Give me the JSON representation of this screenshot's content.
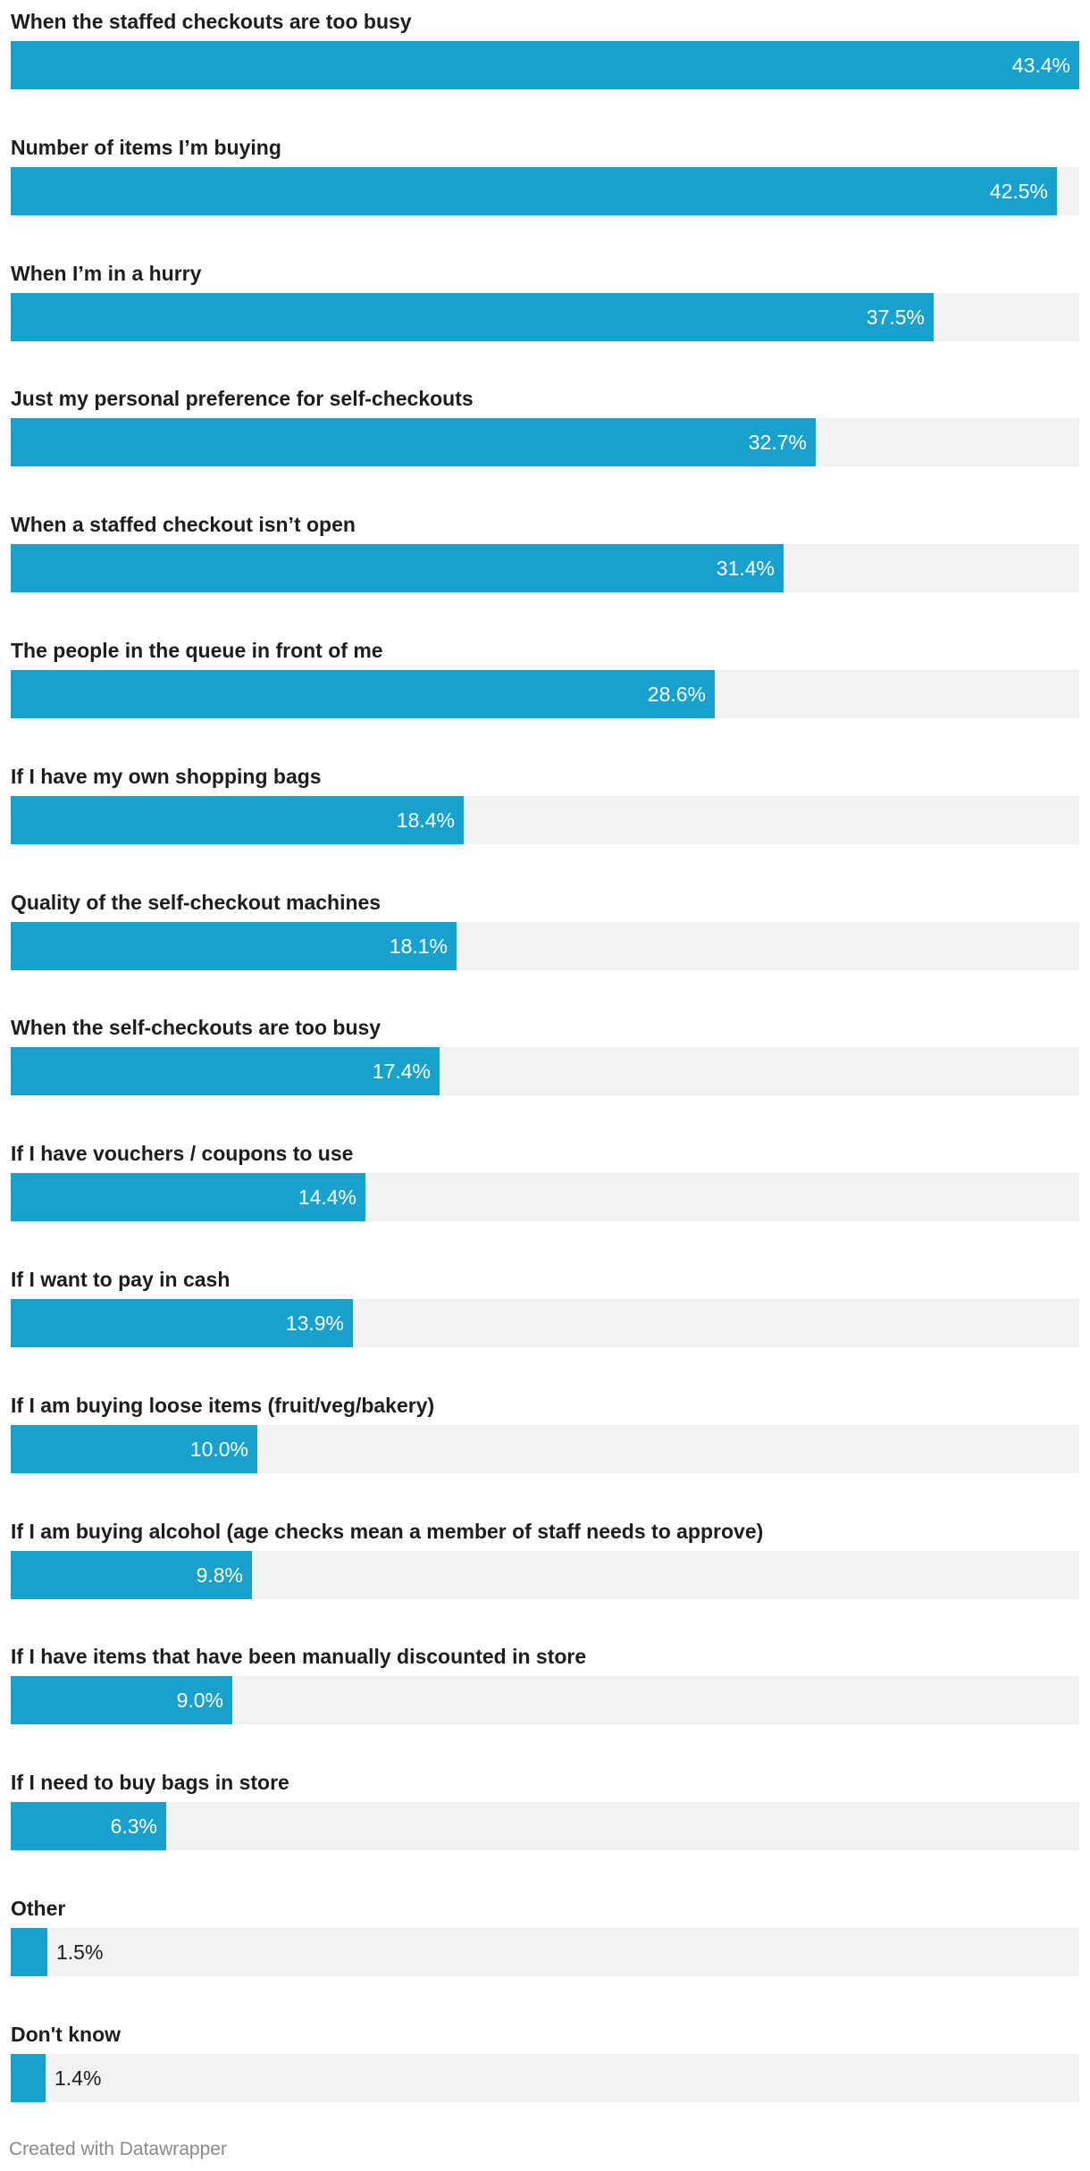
{
  "chart_data": {
    "type": "bar",
    "orientation": "horizontal",
    "categories": [
      "When the staffed checkouts are too busy",
      "Number of items I’m buying",
      "When I’m in a hurry",
      "Just my personal preference for self-checkouts",
      "When a staffed checkout isn’t open",
      "The people in the queue in front of me",
      "If I have my own shopping bags",
      "Quality of the self-checkout machines",
      "When the self-checkouts are too busy",
      "If I have vouchers / coupons to use",
      "If I want to pay in cash",
      "If I am buying loose items (fruit/veg/bakery)",
      "If I am buying alcohol (age checks mean a member of staff needs to approve)",
      "If I have items that have been manually discounted in store",
      "If I need to buy bags in store",
      "Other",
      "Don't know"
    ],
    "values": [
      43.4,
      42.5,
      37.5,
      32.7,
      31.4,
      28.6,
      18.4,
      18.1,
      17.4,
      14.4,
      13.9,
      10.0,
      9.8,
      9.0,
      6.3,
      1.5,
      1.4
    ],
    "value_labels": [
      "43.4%",
      "42.5%",
      "37.5%",
      "32.7%",
      "31.4%",
      "28.6%",
      "18.4%",
      "18.1%",
      "17.4%",
      "14.4%",
      "13.9%",
      "10.0%",
      "9.8%",
      "9.0%",
      "6.3%",
      "1.5%",
      "1.4%"
    ],
    "xlim": [
      0,
      43.4
    ],
    "title": "",
    "xlabel": "",
    "ylabel": "",
    "grid": false,
    "legend": "none",
    "colors": {
      "bar": "#18a1cd",
      "track": "#f2f2f2",
      "label": "#1d1d1d",
      "value_inside": "#ffffff",
      "value_outside": "#1d1d1d"
    }
  },
  "footer": {
    "credit": "Created with Datawrapper"
  }
}
